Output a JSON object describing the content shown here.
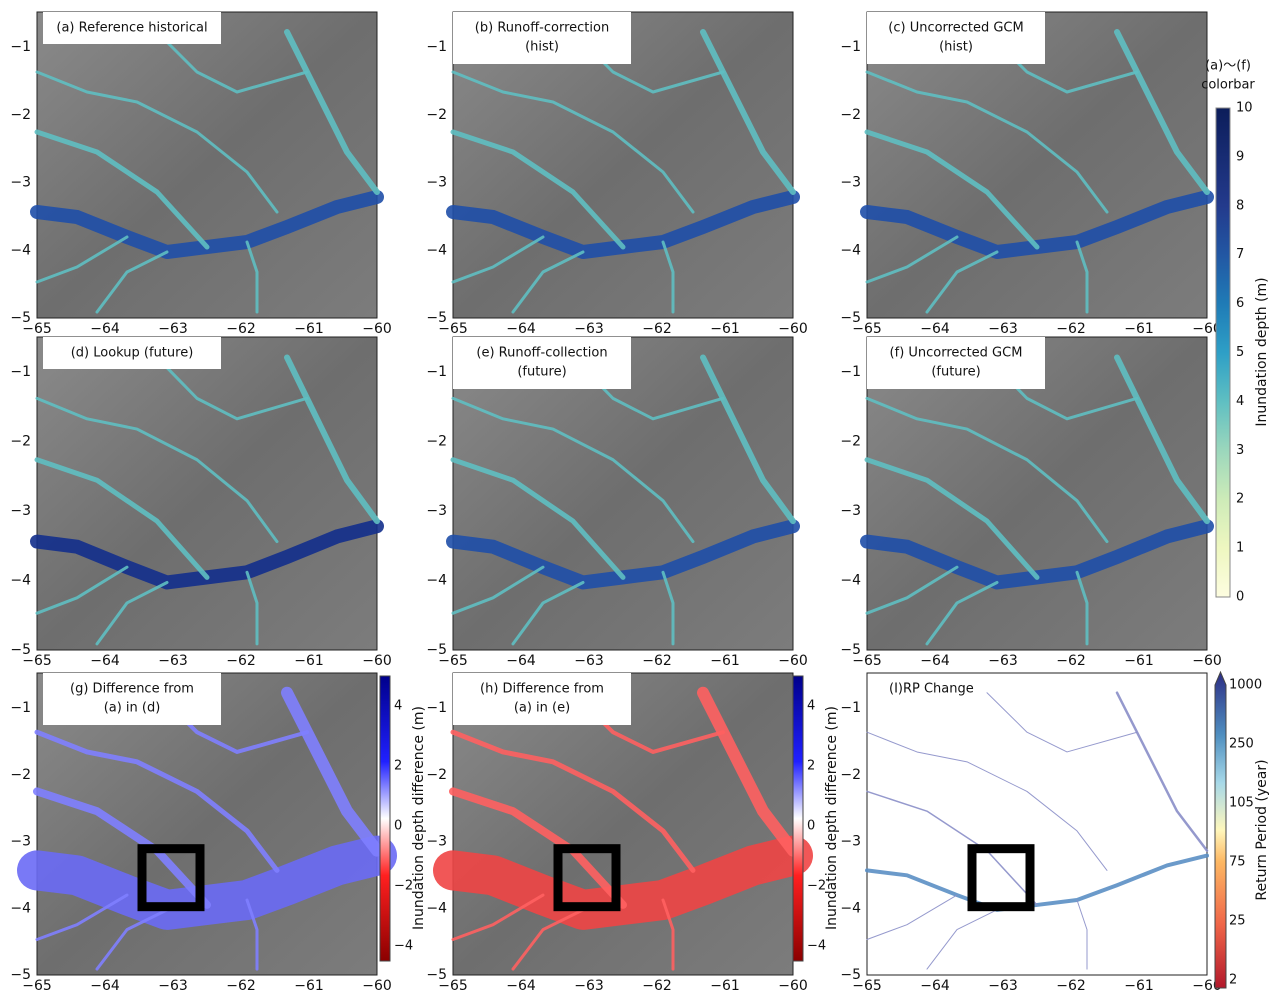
{
  "panels": [
    {
      "id": "a",
      "title": [
        "(a) Reference historical"
      ]
    },
    {
      "id": "b",
      "title": [
        "(b) Runoff-correction",
        "(hist)"
      ]
    },
    {
      "id": "c",
      "title": [
        "(c) Uncorrected GCM",
        "(hist)"
      ]
    },
    {
      "id": "d",
      "title": [
        "(d) Lookup (future)"
      ]
    },
    {
      "id": "e",
      "title": [
        "(e) Runoff-collection",
        "(future)"
      ]
    },
    {
      "id": "f",
      "title": [
        "(f) Uncorrected GCM",
        "(future)"
      ]
    },
    {
      "id": "g",
      "title": [
        "(g) Difference from",
        "(a) in (d)"
      ]
    },
    {
      "id": "h",
      "title": [
        "(h) Difference from",
        "(a) in (e)"
      ]
    },
    {
      "id": "i",
      "title": [
        "(I)RP Change"
      ]
    }
  ],
  "x_tick_labels": [
    "−65",
    "−64",
    "−63",
    "−62",
    "−61",
    "−60"
  ],
  "y_tick_labels": [
    "−1",
    "−2",
    "−3",
    "−4",
    "−5"
  ],
  "colorbars": {
    "depth": {
      "header": [
        "(a)～(f)",
        "colorbar"
      ],
      "label": "Inundation  depth  (m)",
      "ticks": [
        "0",
        "1",
        "2",
        "3",
        "4",
        "5",
        "6",
        "7",
        "8",
        "9",
        "10"
      ]
    },
    "difference": {
      "label": "Inundation depth difference  (m)",
      "ticks": [
        "4",
        "2",
        "0",
        "−2",
        "−4"
      ]
    },
    "return_period": {
      "label": "Return  Period  (year)",
      "ticks": [
        "1000",
        "250",
        "105",
        "75",
        "25",
        "2"
      ]
    }
  }
}
